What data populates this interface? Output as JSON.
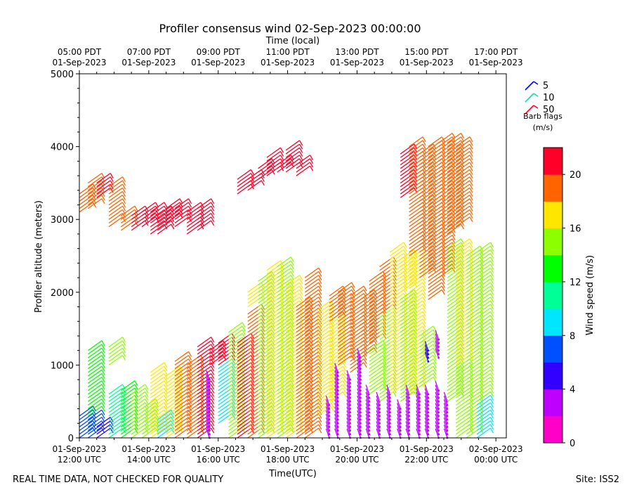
{
  "chart_data": {
    "type": "wind-barb-time-height",
    "title": "Profiler consensus wind 02-Sep-2023 00:00:00",
    "xlabel": "Time(UTC)",
    "top_xlabel": "Time (local)",
    "ylabel": "Profiler altitude (meters)",
    "ylim": [
      0,
      5000
    ],
    "y_ticks": [
      "0",
      "1000",
      "2000",
      "3000",
      "4000",
      "5000"
    ],
    "x_ticks_utc": [
      {
        "date": "01-Sep-2023",
        "time": "12:00 UTC"
      },
      {
        "date": "01-Sep-2023",
        "time": "14:00 UTC"
      },
      {
        "date": "01-Sep-2023",
        "time": "16:00 UTC"
      },
      {
        "date": "01-Sep-2023",
        "time": "18:00 UTC"
      },
      {
        "date": "01-Sep-2023",
        "time": "20:00 UTC"
      },
      {
        "date": "01-Sep-2023",
        "time": "22:00 UTC"
      },
      {
        "date": "02-Sep-2023",
        "time": "00:00 UTC"
      }
    ],
    "x_ticks_local": [
      {
        "time": "05:00 PDT",
        "date": "01-Sep-2023"
      },
      {
        "time": "07:00 PDT",
        "date": "01-Sep-2023"
      },
      {
        "time": "09:00 PDT",
        "date": "01-Sep-2023"
      },
      {
        "time": "11:00 PDT",
        "date": "01-Sep-2023"
      },
      {
        "time": "13:00 PDT",
        "date": "01-Sep-2023"
      },
      {
        "time": "15:00 PDT",
        "date": "01-Sep-2023"
      },
      {
        "time": "17:00 PDT",
        "date": "01-Sep-2023"
      }
    ],
    "x_range_hours_utc": [
      12,
      24.3
    ],
    "colorbar": {
      "label": "Wind speed (m/s)",
      "range": [
        0,
        22
      ],
      "tick_labels": [
        "0",
        "4",
        "8",
        "12",
        "16",
        "20"
      ],
      "tick_values": [
        0,
        4,
        8,
        12,
        16,
        20
      ],
      "colors": [
        "#ff00c8",
        "#be00ff",
        "#3200ff",
        "#0050ff",
        "#00e6ff",
        "#00ff96",
        "#00ff00",
        "#8cff00",
        "#ffe600",
        "#ff6400",
        "#ff0028"
      ]
    },
    "barb_legend": {
      "title_line1": "Barb flags",
      "title_line2": "(m/s)",
      "items": [
        {
          "label": "5",
          "color": "#0000ff"
        },
        {
          "label": "10",
          "color": "#00e6a0"
        },
        {
          "label": "50",
          "color": "#ff0028"
        }
      ]
    },
    "profiles": [
      {
        "t": 12.0,
        "segments": [
          [
            0,
            300,
            6
          ],
          [
            3100,
            3350,
            19
          ]
        ]
      },
      {
        "t": 12.25,
        "segments": [
          [
            0,
            250,
            6
          ],
          [
            300,
            1200,
            13
          ],
          [
            3150,
            3500,
            18
          ]
        ]
      },
      {
        "t": 12.5,
        "segments": [
          [
            0,
            150,
            5
          ],
          [
            3300,
            3500,
            21
          ]
        ]
      },
      {
        "t": 12.85,
        "segments": [
          [
            0,
            600,
            11
          ],
          [
            1000,
            1250,
            14
          ],
          [
            2900,
            3450,
            19
          ]
        ]
      },
      {
        "t": 13.2,
        "segments": [
          [
            0,
            650,
            12
          ],
          [
            2850,
            3050,
            19
          ]
        ]
      },
      {
        "t": 13.5,
        "segments": [
          [
            0,
            600,
            14
          ],
          [
            2850,
            3050,
            20
          ]
        ]
      },
      {
        "t": 13.8,
        "segments": [
          [
            0,
            400,
            15
          ],
          [
            2900,
            3100,
            21
          ]
        ]
      },
      {
        "t": 14.05,
        "segments": [
          [
            0,
            900,
            16
          ],
          [
            2800,
            3100,
            21
          ]
        ]
      },
      {
        "t": 14.25,
        "segments": [
          [
            0,
            250,
            9
          ],
          [
            2800,
            3050,
            20
          ]
        ]
      },
      {
        "t": 14.5,
        "segments": [
          [
            0,
            850,
            17
          ],
          [
            2950,
            3150,
            21
          ]
        ]
      },
      {
        "t": 14.75,
        "segments": [
          [
            0,
            1050,
            19
          ],
          [
            2900,
            3150,
            20
          ]
        ]
      },
      {
        "t": 15.1,
        "segments": [
          [
            0,
            1000,
            19
          ],
          [
            2800,
            3100,
            21
          ]
        ]
      },
      {
        "t": 15.4,
        "segments": [
          [
            0,
            1250,
            20
          ],
          [
            2850,
            3150,
            21
          ]
        ]
      },
      {
        "t": 15.75,
        "segments": [
          [
            0,
            800,
            3
          ],
          [
            1000,
            1200,
            21
          ]
        ]
      },
      {
        "t": 16.0,
        "segments": [
          [
            200,
            950,
            9
          ],
          [
            1000,
            1300,
            20
          ]
        ]
      },
      {
        "t": 16.3,
        "segments": [
          [
            0,
            1450,
            15
          ]
        ]
      },
      {
        "t": 16.55,
        "segments": [
          [
            0,
            1300,
            20
          ],
          [
            3350,
            3550,
            21
          ]
        ]
      },
      {
        "t": 16.85,
        "segments": [
          [
            0,
            1700,
            18
          ],
          [
            1800,
            2000,
            16
          ],
          [
            3400,
            3550,
            21
          ]
        ]
      },
      {
        "t": 17.15,
        "segments": [
          [
            0,
            2150,
            14
          ],
          [
            3550,
            3700,
            21
          ]
        ]
      },
      {
        "t": 17.4,
        "segments": [
          [
            0,
            2300,
            16
          ],
          [
            3600,
            3850,
            20
          ]
        ]
      },
      {
        "t": 17.7,
        "segments": [
          [
            0,
            2350,
            14
          ],
          [
            3650,
            3750,
            21
          ]
        ]
      },
      {
        "t": 17.95,
        "segments": [
          [
            0,
            2100,
            17
          ],
          [
            3650,
            3950,
            21
          ]
        ]
      },
      {
        "t": 18.25,
        "segments": [
          [
            0,
            1800,
            18
          ],
          [
            3600,
            3750,
            21
          ]
        ]
      },
      {
        "t": 18.5,
        "segments": [
          [
            0,
            2200,
            19
          ]
        ]
      },
      {
        "t": 18.85,
        "segments": [
          [
            300,
            1750,
            16
          ]
        ]
      },
      {
        "t": 19.2,
        "segments": [
          [
            0,
            450,
            3
          ],
          [
            500,
            1600,
            17
          ],
          [
            1600,
            1950,
            19
          ]
        ]
      },
      {
        "t": 19.45,
        "segments": [
          [
            0,
            900,
            2
          ],
          [
            1000,
            2000,
            19
          ]
        ]
      },
      {
        "t": 19.8,
        "segments": [
          [
            0,
            800,
            2
          ],
          [
            900,
            1950,
            18
          ]
        ]
      },
      {
        "t": 20.1,
        "segments": [
          [
            0,
            1100,
            2
          ],
          [
            1100,
            1900,
            18
          ]
        ]
      },
      {
        "t": 20.35,
        "segments": [
          [
            0,
            600,
            2
          ],
          [
            600,
            1200,
            14
          ],
          [
            1300,
            2150,
            19
          ]
        ]
      },
      {
        "t": 20.65,
        "segments": [
          [
            0,
            500,
            2
          ],
          [
            500,
            1700,
            15
          ],
          [
            1700,
            2350,
            19
          ]
        ]
      },
      {
        "t": 20.95,
        "segments": [
          [
            0,
            600,
            2
          ],
          [
            600,
            1500,
            16
          ],
          [
            1500,
            2550,
            17
          ]
        ]
      },
      {
        "t": 21.25,
        "segments": [
          [
            0,
            400,
            2
          ],
          [
            500,
            1900,
            15
          ],
          [
            2000,
            2450,
            17
          ],
          [
            3300,
            3900,
            20
          ]
        ]
      },
      {
        "t": 21.5,
        "segments": [
          [
            0,
            600,
            2
          ],
          [
            600,
            2500,
            16
          ],
          [
            2500,
            4000,
            18
          ]
        ]
      },
      {
        "t": 21.8,
        "segments": [
          [
            0,
            600,
            2
          ],
          [
            700,
            1400,
            15
          ],
          [
            2200,
            3900,
            18
          ]
        ]
      },
      {
        "t": 22.05,
        "segments": [
          [
            0,
            600,
            2
          ],
          [
            1050,
            1200,
            4
          ],
          [
            1900,
            4000,
            18
          ]
        ]
      },
      {
        "t": 22.35,
        "segments": [
          [
            0,
            650,
            2
          ],
          [
            1100,
            1350,
            3
          ],
          [
            2200,
            4050,
            19
          ]
        ]
      },
      {
        "t": 22.6,
        "segments": [
          [
            0,
            500,
            2
          ],
          [
            500,
            2600,
            15
          ],
          [
            2800,
            4050,
            19
          ]
        ]
      },
      {
        "t": 22.85,
        "segments": [
          [
            0,
            1000,
            14
          ],
          [
            1000,
            2600,
            16
          ],
          [
            2900,
            4000,
            19
          ]
        ]
      },
      {
        "t": 23.15,
        "segments": [
          [
            0,
            2500,
            15
          ]
        ]
      },
      {
        "t": 23.45,
        "segments": [
          [
            0,
            500,
            8
          ],
          [
            500,
            1500,
            14
          ],
          [
            1500,
            2550,
            15
          ]
        ]
      }
    ]
  },
  "footer": {
    "left_note": "REAL TIME DATA, NOT CHECKED FOR QUALITY",
    "site": "Site: ISS2"
  }
}
